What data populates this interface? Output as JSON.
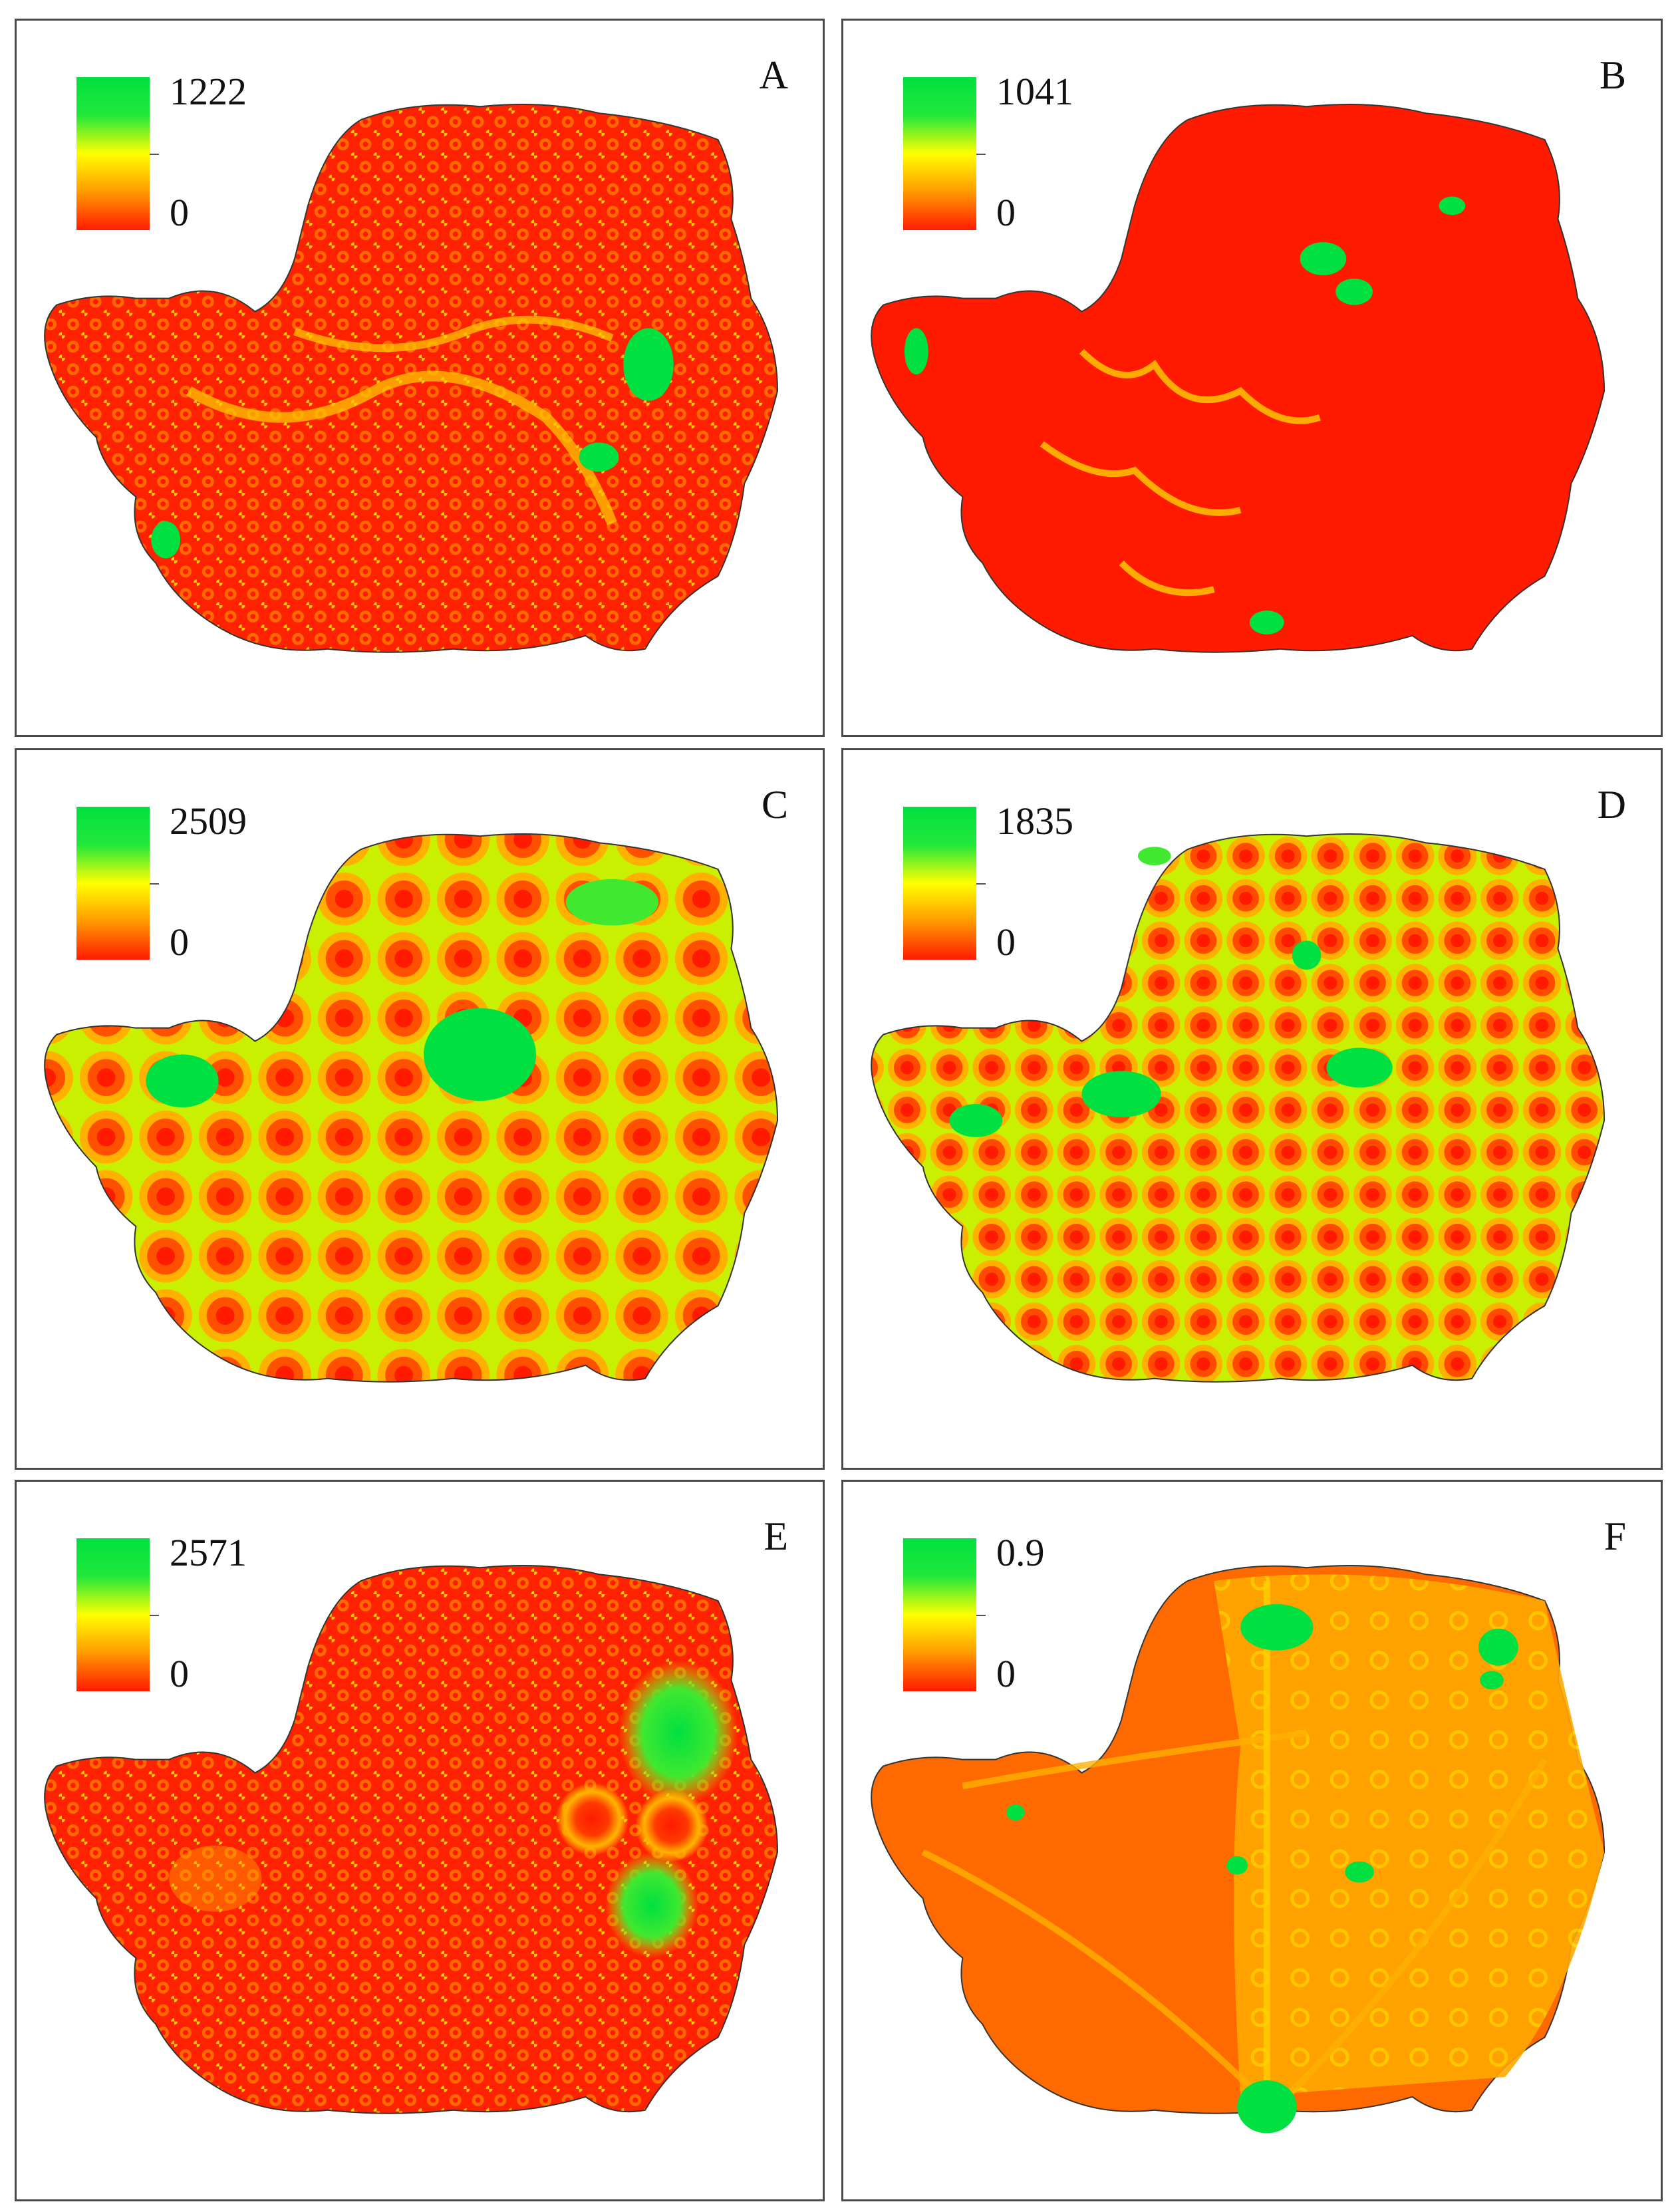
{
  "panels": [
    {
      "letter": "A",
      "max": "1222",
      "min": "0"
    },
    {
      "letter": "B",
      "max": "1041",
      "min": "0"
    },
    {
      "letter": "C",
      "max": "2509",
      "min": "0"
    },
    {
      "letter": "D",
      "max": "1835",
      "min": "0"
    },
    {
      "letter": "E",
      "max": "2571",
      "min": "0"
    },
    {
      "letter": "F",
      "max": "0.9",
      "min": "0"
    }
  ],
  "colors": {
    "high": "#00e040",
    "mid": "#ffff00",
    "low": "#ff1a00",
    "frame": "#4a4a4a"
  }
}
